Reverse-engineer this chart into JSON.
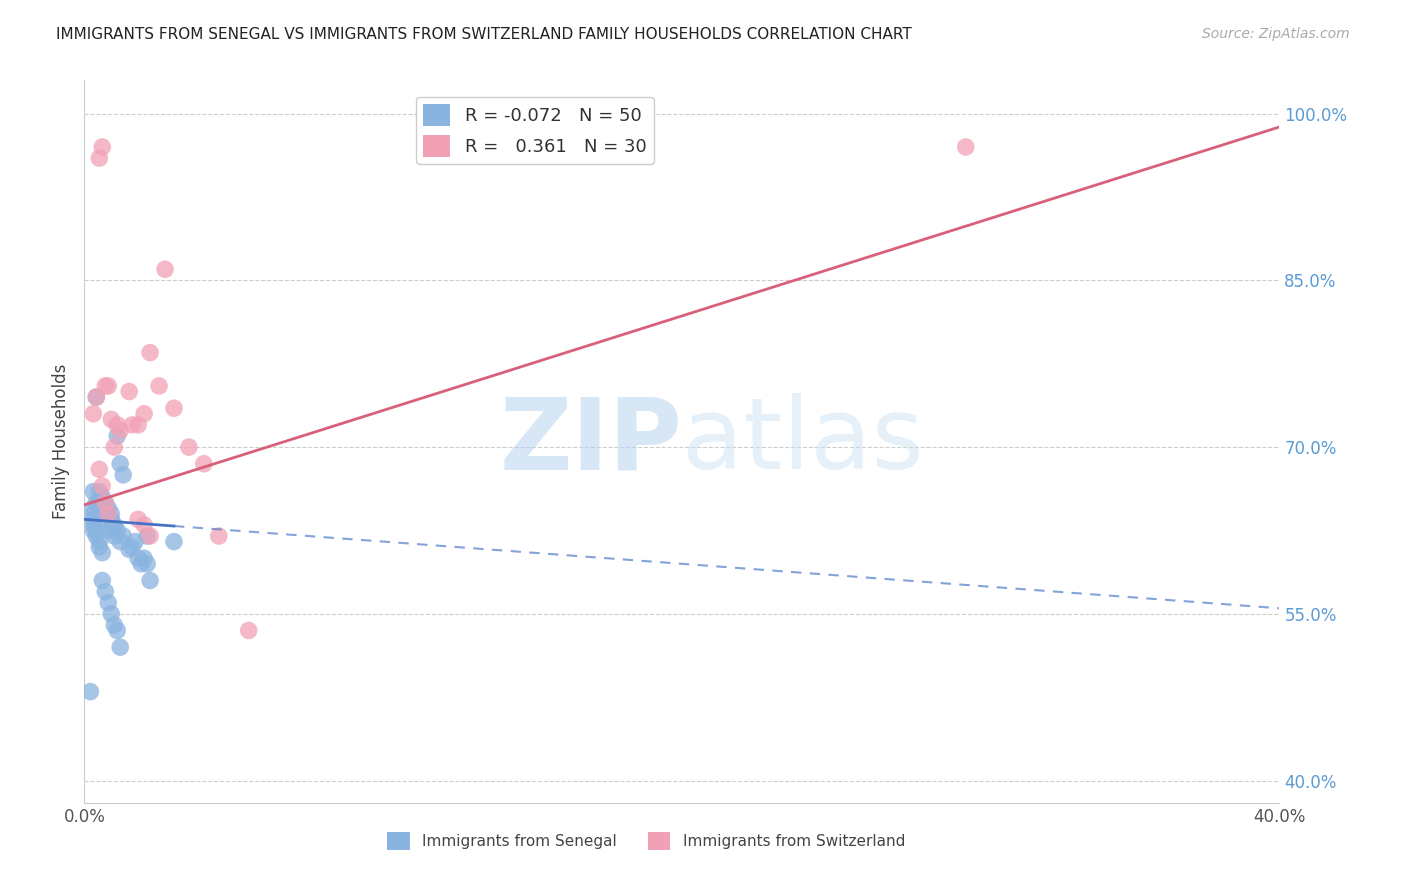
{
  "title": "IMMIGRANTS FROM SENEGAL VS IMMIGRANTS FROM SWITZERLAND FAMILY HOUSEHOLDS CORRELATION CHART",
  "source": "Source: ZipAtlas.com",
  "ylabel": "Family Households",
  "y_ticks": [
    40.0,
    55.0,
    70.0,
    85.0,
    100.0
  ],
  "x_range": [
    0.0,
    0.4
  ],
  "y_range": [
    0.38,
    1.03
  ],
  "senegal_color": "#8ab4e0",
  "switzerland_color": "#f2a0b5",
  "senegal_line_color": "#4472c4",
  "switzerland_line_color": "#d9607a",
  "legend_r_senegal": "-0.072",
  "legend_n_senegal": "50",
  "legend_r_switzerland": "0.361",
  "legend_n_switzerland": "30",
  "senegal_x": [
    0.003,
    0.005,
    0.006,
    0.007,
    0.008,
    0.009,
    0.01,
    0.01,
    0.011,
    0.012,
    0.013,
    0.015,
    0.016,
    0.017,
    0.018,
    0.019,
    0.02,
    0.021,
    0.022,
    0.003,
    0.004,
    0.005,
    0.006,
    0.007,
    0.008,
    0.009,
    0.01,
    0.011,
    0.012,
    0.013,
    0.003,
    0.004,
    0.005,
    0.006,
    0.003,
    0.004,
    0.005,
    0.006,
    0.007,
    0.008,
    0.009,
    0.01,
    0.011,
    0.012,
    0.021,
    0.003,
    0.004,
    0.03,
    0.002,
    0.003
  ],
  "senegal_y": [
    0.635,
    0.65,
    0.645,
    0.63,
    0.625,
    0.64,
    0.62,
    0.63,
    0.625,
    0.615,
    0.62,
    0.608,
    0.61,
    0.615,
    0.6,
    0.595,
    0.6,
    0.595,
    0.58,
    0.64,
    0.65,
    0.66,
    0.655,
    0.65,
    0.645,
    0.635,
    0.625,
    0.71,
    0.685,
    0.675,
    0.63,
    0.625,
    0.61,
    0.605,
    0.625,
    0.62,
    0.615,
    0.58,
    0.57,
    0.56,
    0.55,
    0.54,
    0.535,
    0.52,
    0.62,
    0.66,
    0.745,
    0.615,
    0.48,
    0.645
  ],
  "switzerland_x": [
    0.005,
    0.006,
    0.007,
    0.008,
    0.009,
    0.01,
    0.011,
    0.012,
    0.015,
    0.016,
    0.018,
    0.02,
    0.022,
    0.025,
    0.027,
    0.03,
    0.035,
    0.04,
    0.045,
    0.055,
    0.003,
    0.004,
    0.005,
    0.006,
    0.007,
    0.008,
    0.295,
    0.018,
    0.02,
    0.022
  ],
  "switzerland_y": [
    0.96,
    0.97,
    0.755,
    0.755,
    0.725,
    0.7,
    0.72,
    0.715,
    0.75,
    0.72,
    0.72,
    0.73,
    0.785,
    0.755,
    0.86,
    0.735,
    0.7,
    0.685,
    0.62,
    0.535,
    0.73,
    0.745,
    0.68,
    0.665,
    0.65,
    0.64,
    0.97,
    0.635,
    0.63,
    0.62
  ],
  "watermark_zip": "ZIP",
  "watermark_atlas": "atlas",
  "background_color": "#ffffff",
  "senegal_line_slope": -0.2,
  "senegal_line_intercept": 0.635,
  "switzerland_line_slope": 0.85,
  "switzerland_line_intercept": 0.648
}
